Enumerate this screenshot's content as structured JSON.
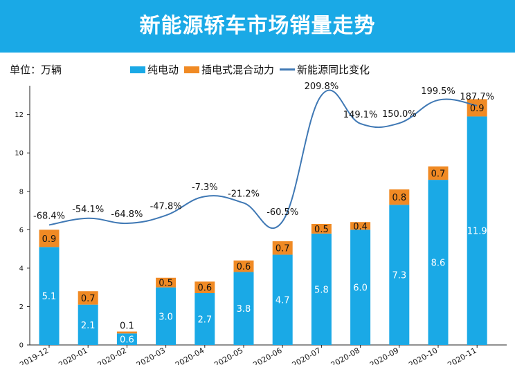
{
  "header": {
    "title": "新能源轿车市场销量走势"
  },
  "unit_label": "单位：万辆",
  "colors": {
    "bev": "#1aa9e6",
    "phev": "#f08a24",
    "yoy": "#3f78b4",
    "banner": "#1aa9e6"
  },
  "chart_data": {
    "type": "bar",
    "stacked": true,
    "title": "",
    "xlabel": "",
    "ylabel": "",
    "ylim": [
      0,
      13.5
    ],
    "yticks": [
      0,
      2,
      4,
      6,
      8,
      10,
      12
    ],
    "grid": false,
    "legend_position": "top",
    "categories": [
      "2019-12",
      "2020-01",
      "2020-02",
      "2020-03",
      "2020-04",
      "2020-05",
      "2020-06",
      "2020-07",
      "2020-08",
      "2020-09",
      "2020-10",
      "2020-11"
    ],
    "series": [
      {
        "name": "纯电动",
        "type": "bar",
        "values": [
          5.1,
          2.1,
          0.6,
          3.0,
          2.7,
          3.8,
          4.7,
          5.8,
          6.0,
          7.3,
          8.6,
          11.9
        ],
        "labels": [
          "5.1",
          "2.1",
          "0.6",
          "3.0",
          "2.7",
          "3.8",
          "4.7",
          "5.8",
          "6.0",
          "7.3",
          "8.6",
          "11.9"
        ]
      },
      {
        "name": "插电式混合动力",
        "type": "bar",
        "values": [
          0.9,
          0.7,
          0.1,
          0.5,
          0.6,
          0.6,
          0.7,
          0.5,
          0.4,
          0.8,
          0.7,
          0.9
        ],
        "labels": [
          "0.9",
          "0.7",
          "0.1",
          "0.5",
          "0.6",
          "0.6",
          "0.7",
          "0.5",
          "0.4",
          "0.8",
          "0.7",
          "0.9"
        ]
      },
      {
        "name": "新能源同比变化",
        "type": "line",
        "values": [
          -68.4,
          -54.1,
          -64.8,
          -47.8,
          -7.3,
          -21.2,
          -60.5,
          209.8,
          149.1,
          150.0,
          199.5,
          187.7
        ],
        "labels": [
          "-68.4%",
          "-54.1%",
          "-64.8%",
          "-47.8%",
          "-7.3%",
          "-21.2%",
          "-60.5%",
          "209.8%",
          "149.1%",
          "150.0%",
          "199.5%",
          "187.7%"
        ]
      }
    ]
  }
}
